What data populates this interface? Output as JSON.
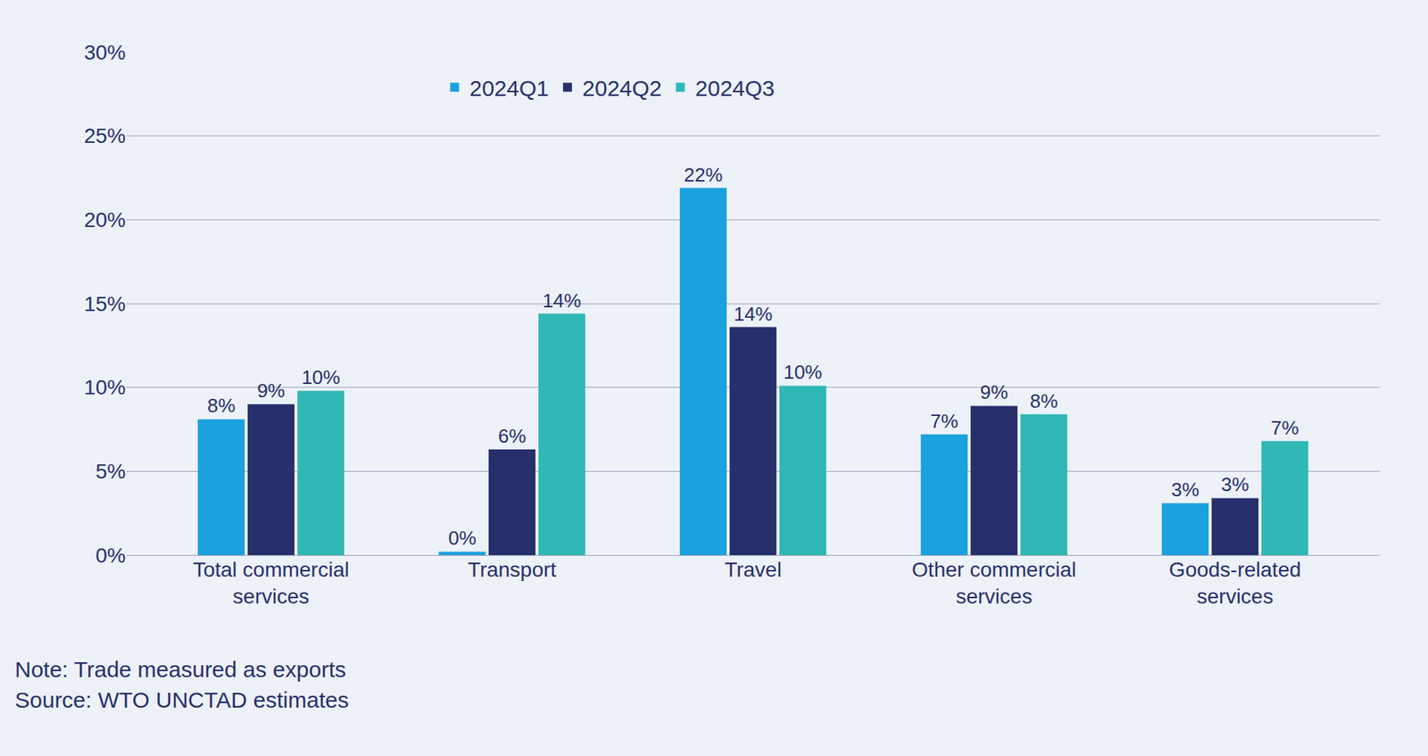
{
  "chart_data": {
    "type": "bar",
    "categories": [
      "Total commercial services",
      "Transport",
      "Travel",
      "Other commercial services",
      "Goods-related services"
    ],
    "series": [
      {
        "name": "2024Q1",
        "color": "#1aa1de",
        "values": [
          8.1,
          0.2,
          21.9,
          7.2,
          3.1
        ],
        "value_labels": [
          "8%",
          "0%",
          "22%",
          "7%",
          "3%"
        ]
      },
      {
        "name": "2024Q2",
        "color": "#27306b",
        "values": [
          9.0,
          6.3,
          13.6,
          8.9,
          3.4
        ],
        "value_labels": [
          "9%",
          "6%",
          "14%",
          "9%",
          "3%"
        ]
      },
      {
        "name": "2024Q3",
        "color": "#2fb8b6",
        "values": [
          9.8,
          14.4,
          10.1,
          8.4,
          6.8
        ],
        "value_labels": [
          "10%",
          "14%",
          "10%",
          "8%",
          "7%"
        ]
      }
    ],
    "ylim": [
      0,
      30
    ],
    "yticks": [
      {
        "value": 0,
        "label": "0%"
      },
      {
        "value": 5,
        "label": "5%"
      },
      {
        "value": 10,
        "label": "10%"
      },
      {
        "value": 15,
        "label": "15%"
      },
      {
        "value": 20,
        "label": "20%"
      },
      {
        "value": 25,
        "label": "25%"
      },
      {
        "value": 30,
        "label": "30%"
      }
    ],
    "grid": true,
    "legend": "top",
    "data_labels": true,
    "notes": [
      "Note: Trade measured as exports",
      "Source: WTO UNCTAD estimates"
    ]
  }
}
